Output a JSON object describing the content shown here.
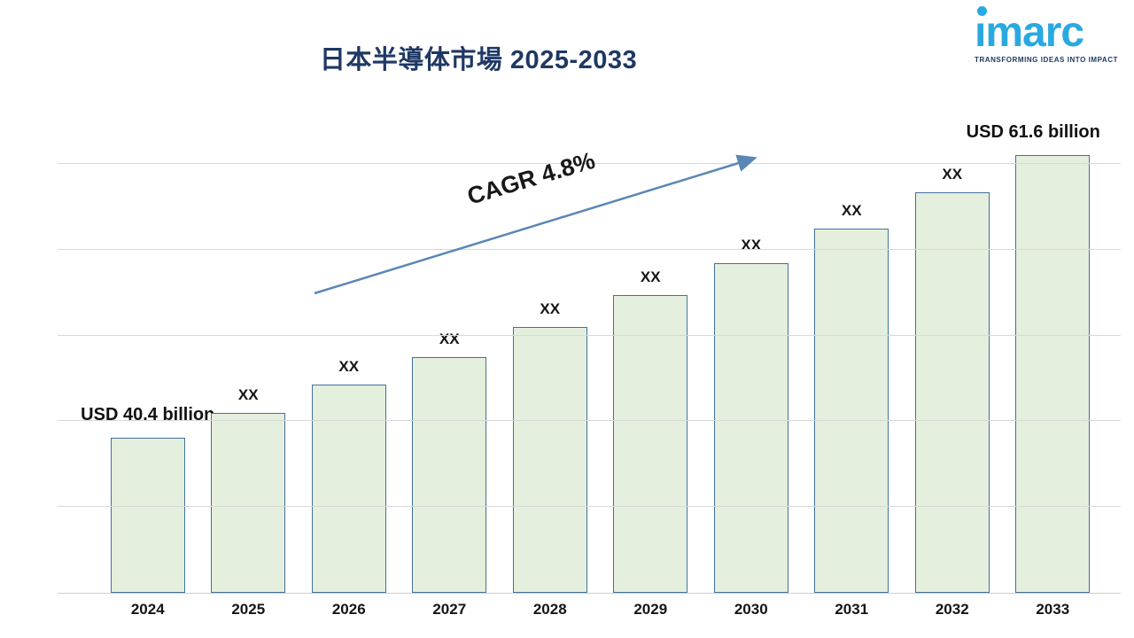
{
  "header": {
    "title": "日本半導体市場 2025-2033"
  },
  "logo": {
    "name": "ımarc",
    "tagline": "TRANSFORMING IDEAS INTO IMPACT",
    "color_blue": "#29a9e1",
    "color_dark": "#1f3864"
  },
  "annotation": {
    "cagr_text": "CAGR 4.8%"
  },
  "chart_data": {
    "type": "bar",
    "title": "日本半導体市場 2025-2033",
    "categories": [
      "2024",
      "2025",
      "2026",
      "2027",
      "2028",
      "2029",
      "2030",
      "2031",
      "2032",
      "2033"
    ],
    "values": [
      40.4,
      42.3,
      44.4,
      46.5,
      48.7,
      51.1,
      53.5,
      56.1,
      58.8,
      61.6
    ],
    "bar_labels": [
      "USD 40.4 billion",
      "XX",
      "XX",
      "XX",
      "XX",
      "XX",
      "XX",
      "XX",
      "XX",
      "USD 61.6 billion"
    ],
    "first_value_label": "USD 40.4 billion",
    "last_value_label": "USD 61.6 billion",
    "xlabel": "",
    "ylabel": "",
    "ylim": [
      28.8,
      64.6
    ],
    "grid": true,
    "legend": false,
    "annotation": "CAGR 4.8%",
    "colors": {
      "bar_fill": "#e5efdd",
      "bar_border": "#41719c",
      "gridline": "#d9d9d9",
      "arrow": "#5b87b5",
      "title": "#1f3864",
      "label_text": "#141414"
    }
  }
}
